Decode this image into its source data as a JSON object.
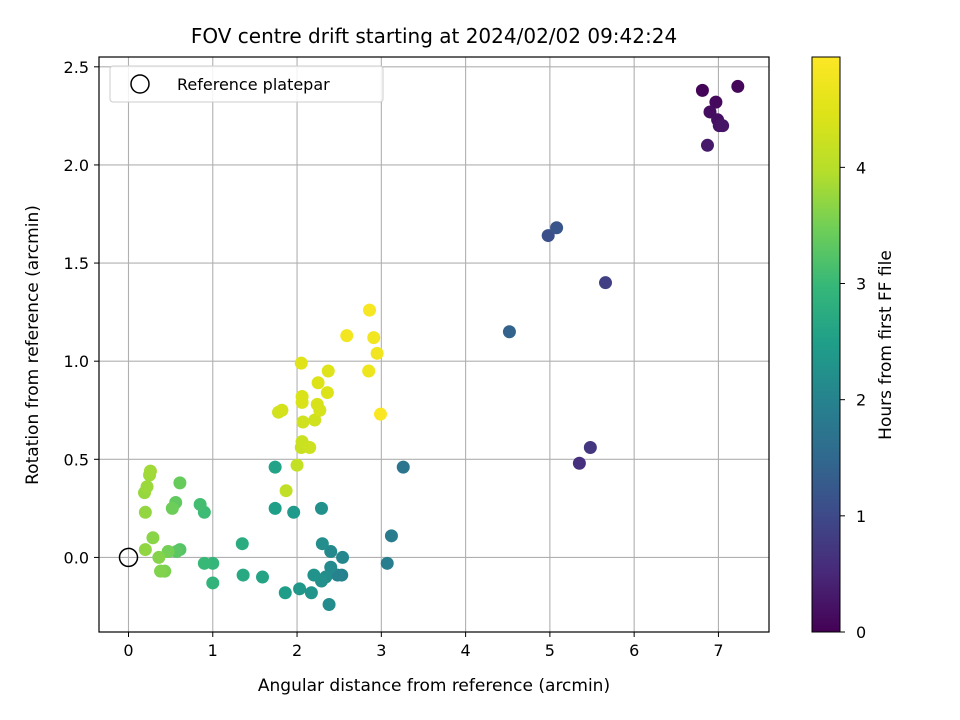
{
  "chart_data": {
    "type": "scatter",
    "title": "FOV centre drift starting at 2024/02/02 09:42:24",
    "xlabel": "Angular distance from reference (arcmin)",
    "ylabel": "Rotation from reference (arcmin)",
    "xlim": [
      -0.35,
      7.6
    ],
    "ylim": [
      -0.38,
      2.55
    ],
    "xticks": [
      0,
      1,
      2,
      3,
      4,
      5,
      6,
      7
    ],
    "yticks": [
      0.0,
      0.5,
      1.0,
      1.5,
      2.0,
      2.5
    ],
    "xtick_labels": [
      "0",
      "1",
      "2",
      "3",
      "4",
      "5",
      "6",
      "7"
    ],
    "ytick_labels": [
      "0.0",
      "0.5",
      "1.0",
      "1.5",
      "2.0",
      "2.5"
    ],
    "grid": true,
    "legend": {
      "placement": "top-left",
      "entries": [
        "Reference platepar"
      ]
    },
    "reference_point": {
      "x": 0,
      "y": 0,
      "marker": "open-circle"
    },
    "colorbar": {
      "label": "Hours from first FF file",
      "colormap": "viridis",
      "range": [
        0,
        4.95
      ],
      "ticks": [
        0,
        1,
        2,
        3,
        4
      ],
      "tick_labels": [
        "0",
        "1",
        "2",
        "3",
        "4"
      ]
    },
    "points": [
      {
        "x": 6.81,
        "y": 2.38,
        "h": 0.05
      },
      {
        "x": 7.23,
        "y": 2.4,
        "h": 0.08
      },
      {
        "x": 6.97,
        "y": 2.32,
        "h": 0.12
      },
      {
        "x": 6.9,
        "y": 2.27,
        "h": 0.15
      },
      {
        "x": 6.99,
        "y": 2.23,
        "h": 0.18
      },
      {
        "x": 7.01,
        "y": 2.2,
        "h": 0.22
      },
      {
        "x": 7.05,
        "y": 2.2,
        "h": 0.25
      },
      {
        "x": 6.87,
        "y": 2.1,
        "h": 0.3
      },
      {
        "x": 5.35,
        "y": 0.48,
        "h": 0.6
      },
      {
        "x": 5.48,
        "y": 0.56,
        "h": 0.7
      },
      {
        "x": 5.66,
        "y": 1.4,
        "h": 0.85
      },
      {
        "x": 4.98,
        "y": 1.64,
        "h": 1.1
      },
      {
        "x": 5.08,
        "y": 1.68,
        "h": 1.2
      },
      {
        "x": 4.52,
        "y": 1.15,
        "h": 1.4
      },
      {
        "x": 3.26,
        "y": 0.46,
        "h": 1.75
      },
      {
        "x": 3.12,
        "y": 0.11,
        "h": 1.85
      },
      {
        "x": 3.07,
        "y": -0.03,
        "h": 1.9
      },
      {
        "x": 2.53,
        "y": -0.09,
        "h": 1.95
      },
      {
        "x": 2.48,
        "y": -0.09,
        "h": 2.0
      },
      {
        "x": 2.54,
        "y": 0.0,
        "h": 2.05
      },
      {
        "x": 2.4,
        "y": 0.03,
        "h": 2.1
      },
      {
        "x": 2.4,
        "y": -0.05,
        "h": 2.12
      },
      {
        "x": 2.38,
        "y": -0.24,
        "h": 2.15
      },
      {
        "x": 2.34,
        "y": -0.1,
        "h": 2.18
      },
      {
        "x": 2.3,
        "y": 0.07,
        "h": 2.2
      },
      {
        "x": 2.29,
        "y": -0.12,
        "h": 2.22
      },
      {
        "x": 2.29,
        "y": 0.25,
        "h": 2.25
      },
      {
        "x": 2.2,
        "y": -0.09,
        "h": 2.28
      },
      {
        "x": 2.17,
        "y": -0.18,
        "h": 2.3
      },
      {
        "x": 2.03,
        "y": -0.16,
        "h": 2.35
      },
      {
        "x": 1.96,
        "y": 0.23,
        "h": 2.4
      },
      {
        "x": 1.86,
        "y": -0.18,
        "h": 2.45
      },
      {
        "x": 1.74,
        "y": 0.25,
        "h": 2.5
      },
      {
        "x": 1.74,
        "y": 0.46,
        "h": 2.55
      },
      {
        "x": 1.59,
        "y": -0.1,
        "h": 2.6
      },
      {
        "x": 1.36,
        "y": -0.09,
        "h": 2.7
      },
      {
        "x": 1.35,
        "y": 0.07,
        "h": 2.75
      },
      {
        "x": 1.0,
        "y": -0.13,
        "h": 2.9
      },
      {
        "x": 1.0,
        "y": -0.03,
        "h": 2.95
      },
      {
        "x": 0.9,
        "y": -0.03,
        "h": 3.0
      },
      {
        "x": 0.9,
        "y": 0.23,
        "h": 3.05
      },
      {
        "x": 0.85,
        "y": 0.27,
        "h": 3.1
      },
      {
        "x": 0.61,
        "y": 0.04,
        "h": 3.25
      },
      {
        "x": 0.57,
        "y": 0.03,
        "h": 3.3
      },
      {
        "x": 0.56,
        "y": 0.28,
        "h": 3.35
      },
      {
        "x": 0.61,
        "y": 0.38,
        "h": 3.4
      },
      {
        "x": 0.52,
        "y": 0.25,
        "h": 3.45
      },
      {
        "x": 0.47,
        "y": 0.03,
        "h": 3.5
      },
      {
        "x": 0.43,
        "y": -0.07,
        "h": 3.55
      },
      {
        "x": 0.38,
        "y": -0.07,
        "h": 3.6
      },
      {
        "x": 0.36,
        "y": 0.0,
        "h": 3.62
      },
      {
        "x": 0.29,
        "y": 0.1,
        "h": 3.65
      },
      {
        "x": 0.2,
        "y": 0.04,
        "h": 3.7
      },
      {
        "x": 0.2,
        "y": 0.23,
        "h": 3.72
      },
      {
        "x": 0.19,
        "y": 0.33,
        "h": 3.75
      },
      {
        "x": 0.22,
        "y": 0.36,
        "h": 3.78
      },
      {
        "x": 0.25,
        "y": 0.42,
        "h": 3.8
      },
      {
        "x": 0.26,
        "y": 0.44,
        "h": 3.82
      },
      {
        "x": 1.87,
        "y": 0.34,
        "h": 4.1
      },
      {
        "x": 2.0,
        "y": 0.47,
        "h": 4.15
      },
      {
        "x": 2.05,
        "y": 0.56,
        "h": 4.2
      },
      {
        "x": 2.06,
        "y": 0.59,
        "h": 4.22
      },
      {
        "x": 2.15,
        "y": 0.56,
        "h": 4.25
      },
      {
        "x": 2.07,
        "y": 0.69,
        "h": 4.28
      },
      {
        "x": 2.21,
        "y": 0.7,
        "h": 4.3
      },
      {
        "x": 1.78,
        "y": 0.74,
        "h": 4.32
      },
      {
        "x": 1.82,
        "y": 0.75,
        "h": 4.34
      },
      {
        "x": 2.27,
        "y": 0.75,
        "h": 4.36
      },
      {
        "x": 2.24,
        "y": 0.78,
        "h": 4.38
      },
      {
        "x": 2.06,
        "y": 0.79,
        "h": 4.4
      },
      {
        "x": 2.06,
        "y": 0.82,
        "h": 4.42
      },
      {
        "x": 2.36,
        "y": 0.84,
        "h": 4.44
      },
      {
        "x": 2.25,
        "y": 0.89,
        "h": 4.46
      },
      {
        "x": 2.37,
        "y": 0.95,
        "h": 4.48
      },
      {
        "x": 2.05,
        "y": 0.99,
        "h": 4.5
      },
      {
        "x": 2.85,
        "y": 0.95,
        "h": 4.7
      },
      {
        "x": 2.95,
        "y": 1.04,
        "h": 4.75
      },
      {
        "x": 2.91,
        "y": 1.12,
        "h": 4.78
      },
      {
        "x": 2.59,
        "y": 1.13,
        "h": 4.8
      },
      {
        "x": 2.86,
        "y": 1.26,
        "h": 4.85
      },
      {
        "x": 2.99,
        "y": 0.73,
        "h": 4.9
      }
    ]
  }
}
